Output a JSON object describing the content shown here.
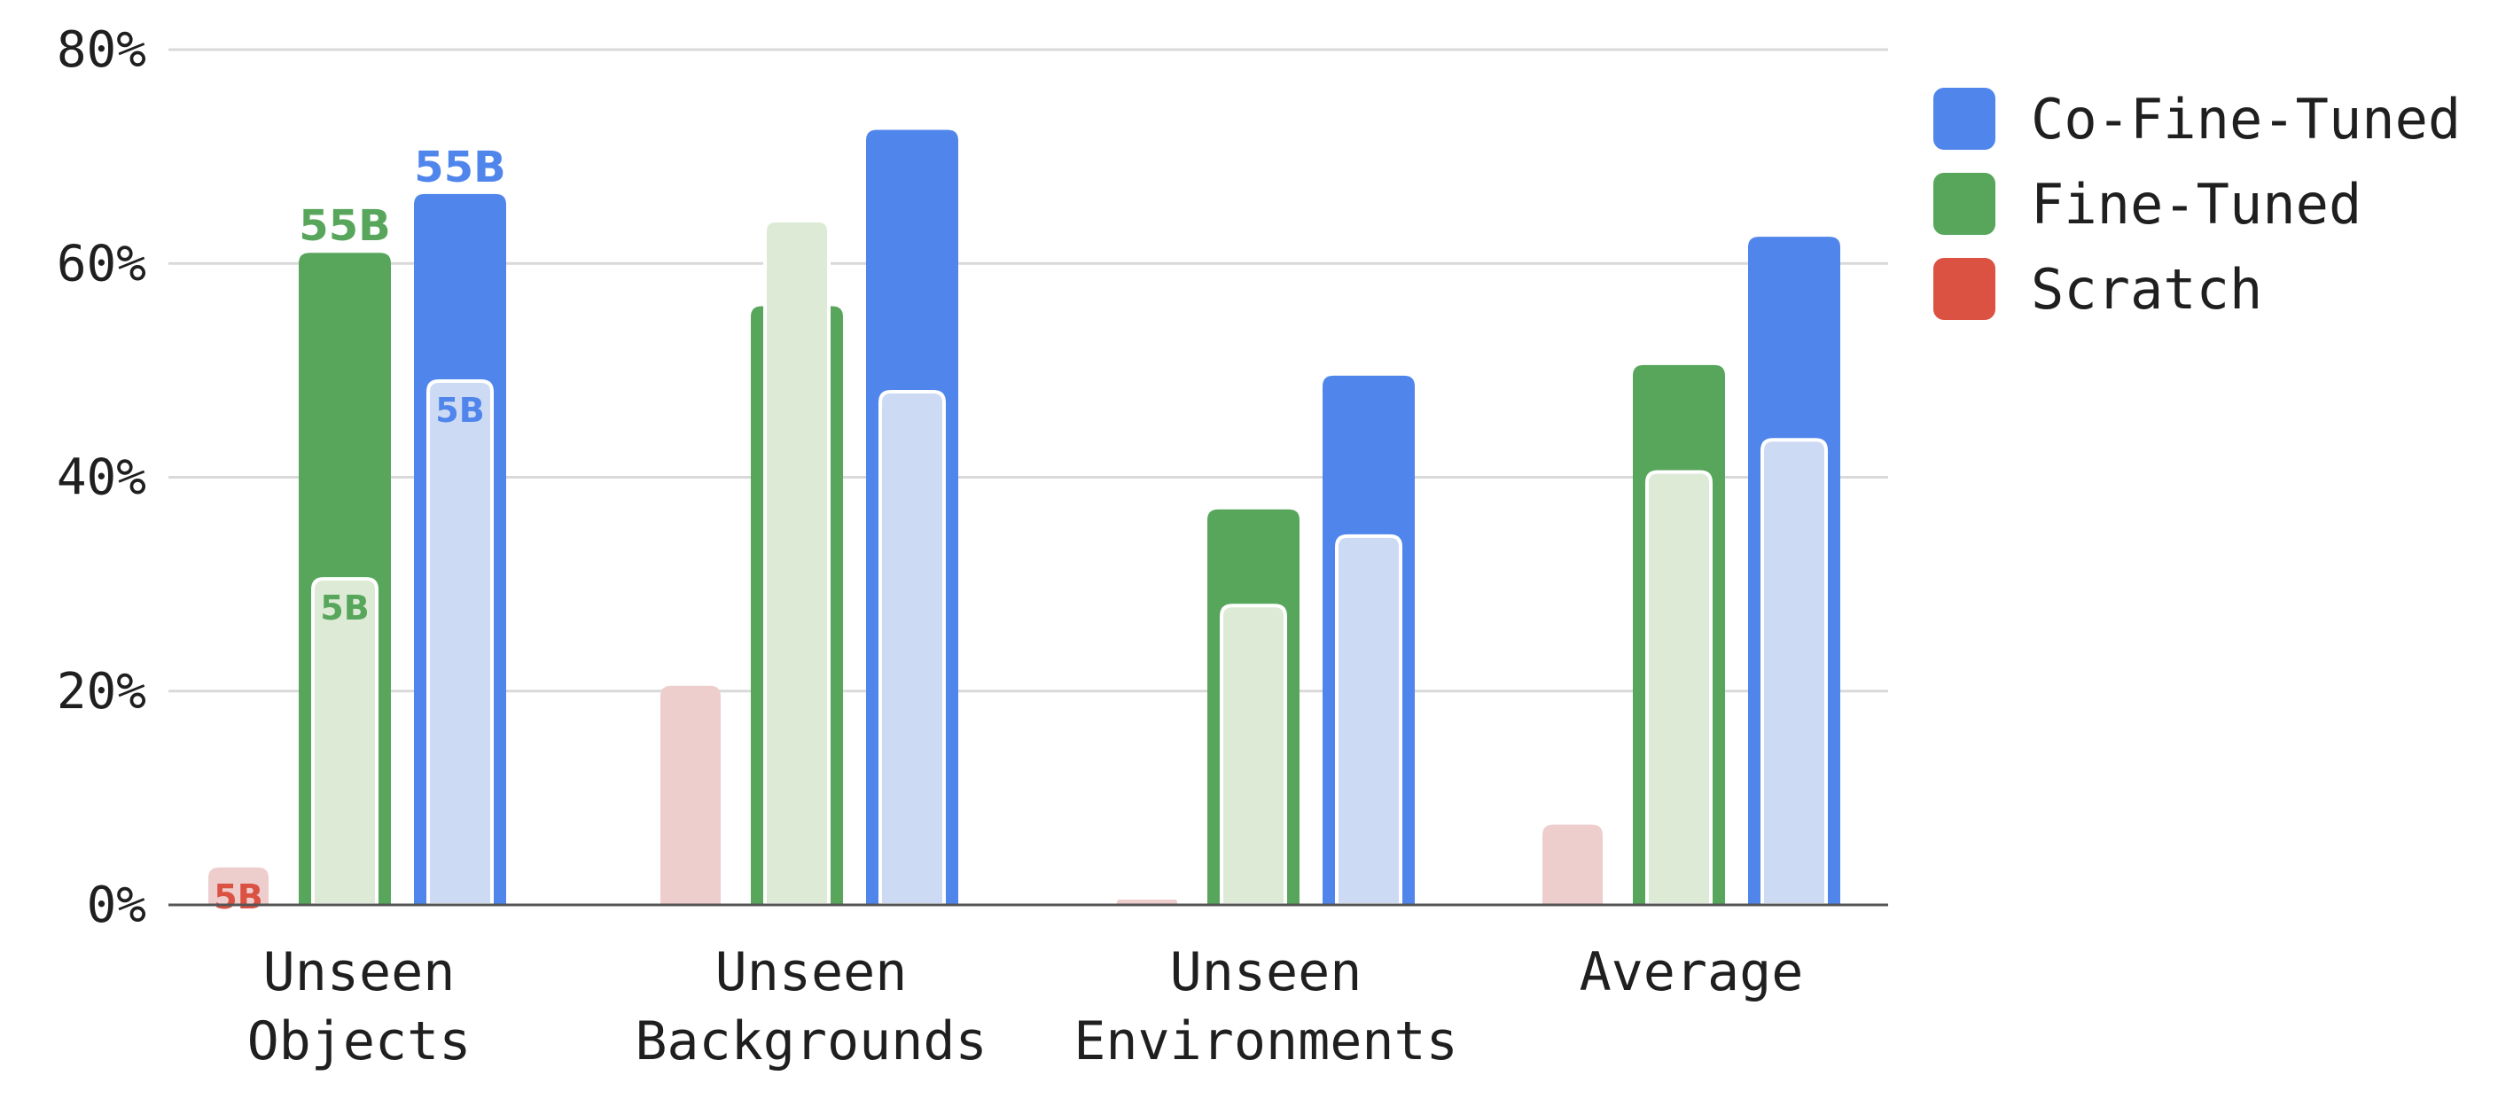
{
  "chart_data": {
    "type": "bar",
    "title": "",
    "xlabel": "",
    "ylabel": "",
    "ylim": [
      0,
      80
    ],
    "y_ticks": [
      "0%",
      "20%",
      "40%",
      "60%",
      "80%"
    ],
    "y_tick_values": [
      0,
      20,
      40,
      60,
      80
    ],
    "grid": true,
    "legend_position": "top-right",
    "categories": [
      [
        "Unseen",
        "Objects"
      ],
      [
        "Unseen",
        "Backgrounds"
      ],
      [
        "Unseen",
        "Environments"
      ],
      [
        "Average"
      ]
    ],
    "series": [
      {
        "name": "Scratch",
        "color": "#DB5142",
        "light_color": "#EECDCD",
        "values_55B": [
          null,
          null,
          null,
          null
        ],
        "values_5B": [
          3.5,
          20.5,
          0.5,
          7.5
        ]
      },
      {
        "name": "Fine-Tuned",
        "color": "#57A65C",
        "light_color": "#DDEAD5",
        "values_55B": [
          61,
          56,
          37,
          50.5
        ],
        "values_5B": [
          30.5,
          64,
          28,
          40.5
        ]
      },
      {
        "name": "Co-Fine-Tuned",
        "color": "#5085EC",
        "light_color": "#CCDAF4",
        "values_55B": [
          66.5,
          72.5,
          49.5,
          62.5
        ],
        "values_5B": [
          49,
          48,
          34.5,
          43.5
        ]
      }
    ],
    "legend_order": [
      "Co-Fine-Tuned",
      "Fine-Tuned",
      "Scratch"
    ],
    "annotations": {
      "scratch_5B": "5B",
      "finetuned_55B": "55B",
      "finetuned_5B": "5B",
      "cofinetuned_55B": "55B",
      "cofinetuned_5B": "5B"
    }
  }
}
